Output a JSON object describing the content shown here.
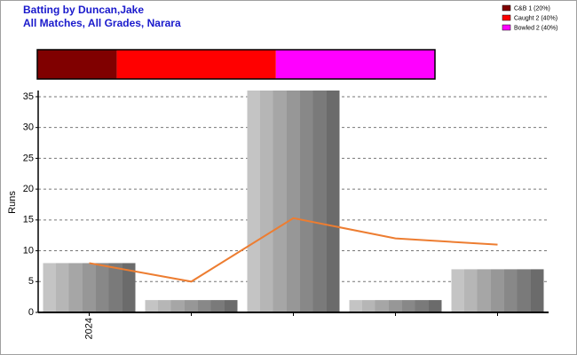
{
  "chart_data": [
    {
      "type": "stacked-bar",
      "title": "Batting by Duncan,Jake",
      "subtitle": "All Matches, All Grades, Narara",
      "series": [
        {
          "name": "C&B 1 (20%)",
          "color": "#800000",
          "values": [
            1
          ]
        },
        {
          "name": "Caught 2 (40%)",
          "color": "#ff0000",
          "values": [
            2
          ]
        },
        {
          "name": "Bowled 2 (40%)",
          "color": "#ff00ff",
          "values": [
            2
          ]
        }
      ]
    },
    {
      "type": "bar-line",
      "ylabel": "Runs",
      "categories": [
        "2024",
        null,
        null,
        null,
        null
      ],
      "series": [
        {
          "type": "bar",
          "color": "#999999",
          "values": [
            8,
            2,
            36,
            2,
            7
          ]
        },
        {
          "type": "line",
          "color": "#ed7d31",
          "values": [
            8,
            5,
            15.3,
            12,
            11
          ]
        }
      ],
      "ylim": [
        0,
        36
      ],
      "yticks": [
        0,
        5,
        10,
        15,
        20,
        25,
        30,
        35
      ],
      "grid": true
    }
  ]
}
